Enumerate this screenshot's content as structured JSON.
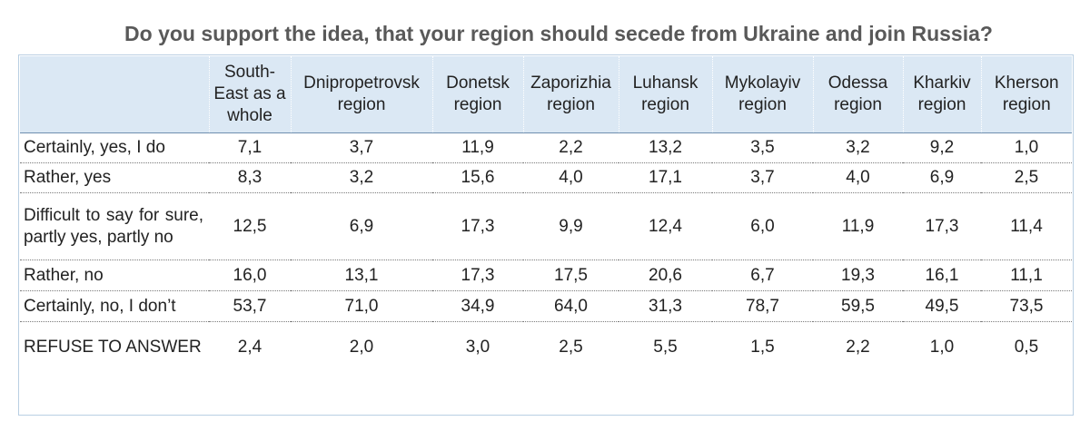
{
  "title": "Do you support the idea, that your region should secede from Ukraine  and join Russia?",
  "chart_data": {
    "type": "table",
    "title": "Do you support the idea, that your region should secede from Ukraine  and join Russia?",
    "columns": [
      "South-East as a whole",
      "Dnipropetrovsk region",
      "Donetsk region",
      "Zaporizhia region",
      "Luhansk region",
      "Mykolayiv region",
      "Odessa region",
      "Kharkiv region",
      "Kherson region"
    ],
    "rows": [
      {
        "label": "Certainly, yes, I do",
        "values": [
          "7,1",
          "3,7",
          "11,9",
          "2,2",
          "13,2",
          "3,5",
          "3,2",
          "9,2",
          "1,0"
        ]
      },
      {
        "label": "Rather, yes",
        "values": [
          "8,3",
          "3,2",
          "15,6",
          "4,0",
          "17,1",
          "3,7",
          "4,0",
          "6,9",
          "2,5"
        ]
      },
      {
        "label": "Difficult to say for sure, partly yes, partly no",
        "values": [
          "12,5",
          "6,9",
          "17,3",
          "9,9",
          "12,4",
          "6,0",
          "11,9",
          "17,3",
          "11,4"
        ]
      },
      {
        "label": "Rather, no",
        "values": [
          "16,0",
          "13,1",
          "17,3",
          "17,5",
          "20,6",
          "6,7",
          "19,3",
          "16,1",
          "11,1"
        ]
      },
      {
        "label": "Certainly, no, I don’t",
        "values": [
          "53,7",
          "71,0",
          "34,9",
          "64,0",
          "31,3",
          "78,7",
          "59,5",
          "49,5",
          "73,5"
        ]
      },
      {
        "label": "REFUSE TO ANSWER",
        "values": [
          "2,4",
          "2,0",
          "3,0",
          "2,5",
          "5,5",
          "1,5",
          "2,2",
          "1,0",
          "0,5"
        ]
      }
    ]
  }
}
